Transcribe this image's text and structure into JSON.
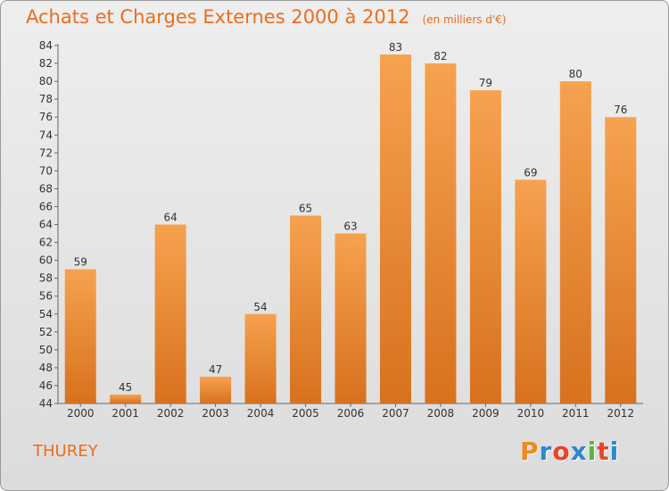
{
  "chart_data": {
    "type": "bar",
    "title": "Achats et Charges Externes 2000 à 2012",
    "subtitle": "(en milliers d'€)",
    "categories": [
      "2000",
      "2001",
      "2002",
      "2003",
      "2004",
      "2005",
      "2006",
      "2007",
      "2008",
      "2009",
      "2010",
      "2011",
      "2012"
    ],
    "values": [
      59,
      45,
      64,
      47,
      54,
      65,
      63,
      83,
      82,
      79,
      69,
      80,
      76
    ],
    "ylim": [
      44,
      84
    ],
    "yticks": [
      44,
      46,
      48,
      50,
      52,
      54,
      56,
      58,
      60,
      62,
      64,
      66,
      68,
      70,
      72,
      74,
      76,
      78,
      80,
      82,
      84
    ],
    "grid": false,
    "bar_color_light": "#f6a24f",
    "bar_color_dark": "#d8711e"
  },
  "footer": {
    "commune": "THUREY",
    "logo_letters": [
      "P",
      "r",
      "o",
      "x",
      "i",
      "t",
      "i"
    ],
    "logo_colors": [
      "#f08a1c",
      "#2f88c8",
      "#e8452b",
      "#2f88c8",
      "#5bb43b",
      "#e8452b",
      "#2f88c8"
    ]
  }
}
